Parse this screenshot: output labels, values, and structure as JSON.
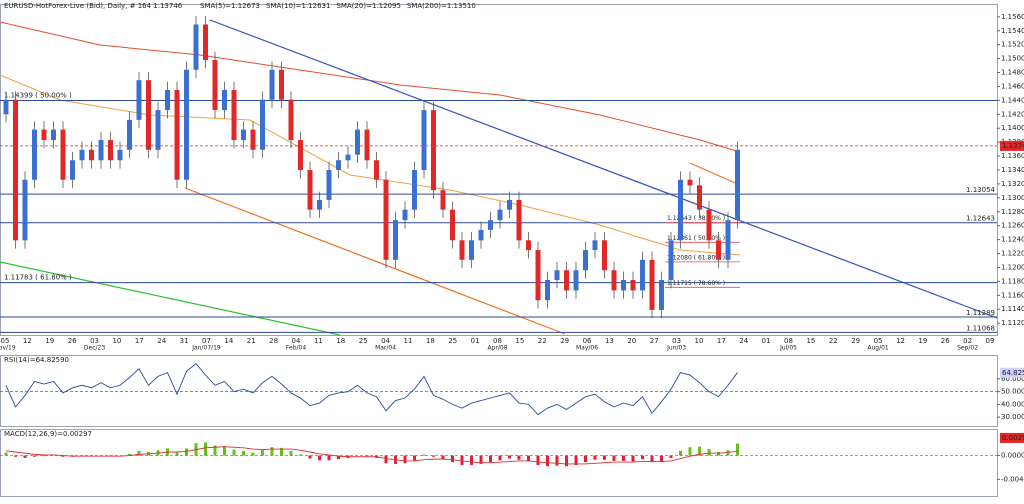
{
  "chart_data": [
    {
      "type": "candlestick",
      "title": "EURUSD-HotForex-Live (Bid), Daily, # 164 1.13746",
      "indicators": [
        {
          "label": "SMA(5)=1.12673",
          "color": "#e8a030"
        },
        {
          "label": "SMA(10)=1.12631",
          "color": "#8a8a8a"
        },
        {
          "label": "SMA(20)=1.12095",
          "color": "#2d9fd8"
        },
        {
          "label": "SMA(200)=1.13510",
          "color": "#e05030"
        }
      ],
      "x_labels": [
        "05",
        "12",
        "19",
        "26",
        "03",
        "10",
        "17",
        "24",
        "31",
        "07",
        "14",
        "21",
        "28",
        "04",
        "11",
        "18",
        "25",
        "04",
        "11",
        "18",
        "25",
        "01",
        "08",
        "15",
        "22",
        "29",
        "06",
        "13",
        "20",
        "27",
        "03",
        "10",
        "17",
        "24",
        "01",
        "08",
        "15",
        "22",
        "29",
        "05",
        "12",
        "19",
        "26",
        "02",
        "09"
      ],
      "month_labels": [
        "Nov/19",
        "Dec/23",
        "Jan/07/19",
        "Feb/04",
        "Mar/04",
        "Apr/08",
        "May/06",
        "Jun/03",
        "Jul/05",
        "Aug/01",
        "Sep/02"
      ],
      "up_color": "#3b6fd0",
      "down_color": "#e02828",
      "series": {
        "open": [
          1.142,
          1.1441,
          1.1239,
          1.1326,
          1.1398,
          1.1383,
          1.1398,
          1.1326,
          1.1354,
          1.1369,
          1.1354,
          1.1383,
          1.1354,
          1.1369,
          1.1412,
          1.1469,
          1.1369,
          1.1426,
          1.1455,
          1.1326,
          1.1484,
          1.1549,
          1.1498,
          1.1426,
          1.1455,
          1.1383,
          1.1398,
          1.1369,
          1.1441,
          1.1484,
          1.1441,
          1.1383,
          1.134,
          1.1283,
          1.1297,
          1.134,
          1.1354,
          1.1362,
          1.1398,
          1.1354,
          1.1326,
          1.1211,
          1.1268,
          1.1283,
          1.134,
          1.1426,
          1.1311,
          1.1283,
          1.1239,
          1.1211,
          1.1239,
          1.1254,
          1.1268,
          1.1283,
          1.1297,
          1.1239,
          1.1225,
          1.1153,
          1.1182,
          1.1196,
          1.1167,
          1.1196,
          1.1225,
          1.1239,
          1.1196,
          1.1167,
          1.1182,
          1.1167,
          1.1211,
          1.1139,
          1.1182,
          1.1239,
          1.1326,
          1.1318,
          1.1283,
          1.1239,
          1.1211,
          1.1268
        ],
        "high": [
          1.1453,
          1.1453,
          1.1338,
          1.141,
          1.141,
          1.141,
          1.141,
          1.1366,
          1.1381,
          1.1381,
          1.1395,
          1.1395,
          1.1381,
          1.1424,
          1.1481,
          1.1481,
          1.1438,
          1.1467,
          1.1467,
          1.1496,
          1.1561,
          1.1561,
          1.151,
          1.1467,
          1.1467,
          1.141,
          1.141,
          1.1453,
          1.1496,
          1.1496,
          1.1453,
          1.1395,
          1.1352,
          1.1309,
          1.1352,
          1.1366,
          1.1374,
          1.141,
          1.141,
          1.1366,
          1.1338,
          1.128,
          1.1295,
          1.1352,
          1.1438,
          1.1438,
          1.1323,
          1.1295,
          1.1251,
          1.1251,
          1.1266,
          1.128,
          1.1295,
          1.1309,
          1.1309,
          1.1251,
          1.1237,
          1.1194,
          1.1208,
          1.1208,
          1.1208,
          1.1237,
          1.1251,
          1.1251,
          1.1208,
          1.1194,
          1.1194,
          1.1223,
          1.1223,
          1.1194,
          1.1251,
          1.1338,
          1.1338,
          1.133,
          1.1295,
          1.1251,
          1.128,
          1.1381
        ],
        "low": [
          1.1408,
          1.1227,
          1.1227,
          1.1314,
          1.1371,
          1.1371,
          1.1314,
          1.1314,
          1.1342,
          1.1342,
          1.1342,
          1.1342,
          1.1342,
          1.1357,
          1.14,
          1.1357,
          1.1357,
          1.1414,
          1.1314,
          1.1314,
          1.1472,
          1.1486,
          1.1414,
          1.1414,
          1.1371,
          1.1371,
          1.1357,
          1.1357,
          1.1429,
          1.1429,
          1.1371,
          1.1328,
          1.1271,
          1.1271,
          1.1285,
          1.1328,
          1.1342,
          1.135,
          1.1342,
          1.1314,
          1.1199,
          1.1199,
          1.1256,
          1.1271,
          1.1328,
          1.1299,
          1.1271,
          1.1227,
          1.1199,
          1.1199,
          1.1227,
          1.1242,
          1.1256,
          1.1271,
          1.1227,
          1.1213,
          1.1141,
          1.1141,
          1.117,
          1.1155,
          1.1155,
          1.1184,
          1.1213,
          1.1184,
          1.1155,
          1.1155,
          1.1155,
          1.1155,
          1.1127,
          1.1127,
          1.117,
          1.1227,
          1.1306,
          1.1271,
          1.1227,
          1.1199,
          1.1199,
          1.1256
        ],
        "close": [
          1.1441,
          1.1239,
          1.1326,
          1.1398,
          1.1383,
          1.1398,
          1.1326,
          1.1354,
          1.1369,
          1.1354,
          1.1383,
          1.1354,
          1.1369,
          1.1412,
          1.1469,
          1.1369,
          1.1426,
          1.1455,
          1.1326,
          1.1484,
          1.1549,
          1.1498,
          1.1426,
          1.1455,
          1.1383,
          1.1398,
          1.1369,
          1.1441,
          1.1484,
          1.1441,
          1.1383,
          1.134,
          1.1283,
          1.1297,
          1.134,
          1.1354,
          1.1362,
          1.1398,
          1.1354,
          1.1326,
          1.1211,
          1.1268,
          1.1283,
          1.134,
          1.1426,
          1.1311,
          1.1283,
          1.1239,
          1.1211,
          1.1239,
          1.1254,
          1.1268,
          1.1283,
          1.1297,
          1.1239,
          1.1225,
          1.1153,
          1.1182,
          1.1196,
          1.1167,
          1.1196,
          1.1225,
          1.1239,
          1.1196,
          1.1167,
          1.1182,
          1.1167,
          1.1211,
          1.1139,
          1.1182,
          1.1239,
          1.1326,
          1.1318,
          1.1283,
          1.1239,
          1.1211,
          1.1268,
          1.1369
        ]
      },
      "ylim": [
        1.1103,
        1.1577
      ],
      "yticks": [
        {
          "value": 1.112,
          "label": "1.11200"
        },
        {
          "value": 1.114,
          "label": "1.11400"
        },
        {
          "value": 1.116,
          "label": "1.11600"
        },
        {
          "value": 1.118,
          "label": "1.11800"
        },
        {
          "value": 1.12,
          "label": "1.12000"
        },
        {
          "value": 1.122,
          "label": "1.12200"
        },
        {
          "value": 1.124,
          "label": "1.12400"
        },
        {
          "value": 1.126,
          "label": "1.12600"
        },
        {
          "value": 1.128,
          "label": "1.12800"
        },
        {
          "value": 1.13,
          "label": "1.13000"
        },
        {
          "value": 1.132,
          "label": "1.13200"
        },
        {
          "value": 1.134,
          "label": "1.13400"
        },
        {
          "value": 1.136,
          "label": "1.13600"
        },
        {
          "value": 1.138,
          "label": "1.13800"
        },
        {
          "value": 1.14,
          "label": "1.14000"
        },
        {
          "value": 1.142,
          "label": "1.14200"
        },
        {
          "value": 1.144,
          "label": "1.14400"
        },
        {
          "value": 1.146,
          "label": "1.14600"
        },
        {
          "value": 1.148,
          "label": "1.14800"
        },
        {
          "value": 1.15,
          "label": "1.15000"
        },
        {
          "value": 1.152,
          "label": "1.15200"
        },
        {
          "value": 1.154,
          "label": "1.15400"
        },
        {
          "value": 1.156,
          "label": "1.15600"
        }
      ],
      "levels": [
        {
          "value": 1.14399,
          "label": "1.14399 ( 50.00% )"
        },
        {
          "value": 1.13054,
          "label": "1.13054"
        },
        {
          "value": 1.12643,
          "label": "1.12643"
        },
        {
          "value": 1.11783,
          "label": "1.11783 ( 61.80% )"
        },
        {
          "value": 1.11289,
          "label": "1.11289"
        },
        {
          "value": 1.11068,
          "label": "1.11068"
        }
      ],
      "level_color": "#2c4a9a",
      "fib_levels": [
        {
          "value": 1.12643,
          "label": "1.12643 ( 38.20% )"
        },
        {
          "value": 1.12361,
          "label": "1.12361 ( 50.00% )"
        },
        {
          "value": 1.1208,
          "label": "1.12080 ( 61.80% )"
        },
        {
          "value": 1.11715,
          "label": "1.11715 ( 78.60% )"
        }
      ],
      "fib_color": "#e05050",
      "current_price": {
        "value": 1.13746,
        "label": "1.13746"
      },
      "current_color": "#e02828"
    },
    {
      "type": "line",
      "title": "RSI(14)=64.82590",
      "values": [
        55,
        38,
        47,
        58,
        56,
        58,
        49,
        53,
        55,
        53,
        57,
        53,
        55,
        61,
        68,
        55,
        62,
        65,
        48,
        66,
        72,
        63,
        55,
        58,
        50,
        52,
        49,
        57,
        62,
        56,
        49,
        45,
        39,
        41,
        47,
        49,
        50,
        55,
        49,
        46,
        35,
        43,
        45,
        52,
        62,
        47,
        44,
        40,
        37,
        41,
        43,
        45,
        47,
        49,
        41,
        40,
        32,
        37,
        40,
        36,
        41,
        46,
        48,
        42,
        38,
        41,
        39,
        46,
        33,
        42,
        52,
        65,
        63,
        57,
        50,
        46,
        55,
        65
      ],
      "color": "#2c4a9a",
      "ylim": [
        23,
        78
      ],
      "yticks": [
        {
          "value": 60,
          "label": "60.00000"
        },
        {
          "value": 50,
          "label": "50.00000"
        },
        {
          "value": 40,
          "label": "40.00000"
        },
        {
          "value": 30,
          "label": "30.00000"
        }
      ],
      "level": 50,
      "current": {
        "value": 64.8259,
        "label": "64.82590"
      }
    },
    {
      "type": "macd",
      "title": "MACD(12,26,9)=0.00297",
      "values": [
        0.0005,
        -0.0002,
        -0.0004,
        -0.0002,
        -0.0001,
        0.0,
        -0.0002,
        -0.0002,
        -0.0001,
        -0.0001,
        0.0,
        -0.0001,
        0.0,
        0.0003,
        0.0008,
        0.0006,
        0.0009,
        0.0012,
        0.0005,
        0.0012,
        0.0021,
        0.0022,
        0.0017,
        0.0016,
        0.001,
        0.0008,
        0.0005,
        0.0009,
        0.0014,
        0.0013,
        0.0008,
        0.0002,
        -0.0005,
        -0.0008,
        -0.0008,
        -0.0006,
        -0.0004,
        0.0,
        -0.0001,
        -0.0004,
        -0.0013,
        -0.0014,
        -0.0013,
        -0.0008,
        0.0002,
        -0.0002,
        -0.0006,
        -0.0011,
        -0.0016,
        -0.0016,
        -0.0014,
        -0.0011,
        -0.0008,
        -0.0005,
        -0.0007,
        -0.0009,
        -0.0016,
        -0.0018,
        -0.0017,
        -0.0018,
        -0.0016,
        -0.0011,
        -0.0007,
        -0.0007,
        -0.0009,
        -0.0009,
        -0.001,
        -0.0006,
        -0.0011,
        -0.001,
        -0.0004,
        0.0008,
        0.0014,
        0.0015,
        0.0011,
        0.0006,
        0.0009,
        0.002
      ],
      "signal": [
        0.0008,
        0.0006,
        0.0004,
        0.0002,
        0.0001,
        0.0001,
        0.0,
        -0.0001,
        -0.0001,
        -0.0001,
        -0.0001,
        -0.0001,
        -0.0001,
        0.0,
        0.0002,
        0.0003,
        0.0004,
        0.0006,
        0.0006,
        0.0007,
        0.001,
        0.0013,
        0.0014,
        0.0015,
        0.0014,
        0.0013,
        0.0011,
        0.001,
        0.0011,
        0.0011,
        0.0011,
        0.0009,
        0.0006,
        0.0003,
        0.0001,
        -0.0001,
        -0.0002,
        -0.0002,
        -0.0002,
        -0.0002,
        -0.0005,
        -0.0007,
        -0.0009,
        -0.0009,
        -0.0007,
        -0.0006,
        -0.0006,
        -0.0007,
        -0.0009,
        -0.0011,
        -0.0012,
        -0.0012,
        -0.0011,
        -0.001,
        -0.0009,
        -0.0009,
        -0.0011,
        -0.0012,
        -0.0013,
        -0.0014,
        -0.0014,
        -0.0014,
        -0.0013,
        -0.0012,
        -0.0011,
        -0.0011,
        -0.0011,
        -0.001,
        -0.001,
        -0.001,
        -0.0009,
        -0.0005,
        -0.0001,
        0.0002,
        0.0004,
        0.0004,
        0.0005,
        0.0008
      ],
      "up_color": "#66c01a",
      "down_color": "#e0203a",
      "signal_color": "#e03030",
      "ylim": [
        -0.0068,
        0.0043
      ],
      "yticks": [
        {
          "value": 0,
          "label": "0.00000"
        },
        {
          "value": -0.004,
          "label": "-0.00400"
        }
      ],
      "current": {
        "value": 0.00297,
        "label": "0.00297"
      }
    }
  ]
}
